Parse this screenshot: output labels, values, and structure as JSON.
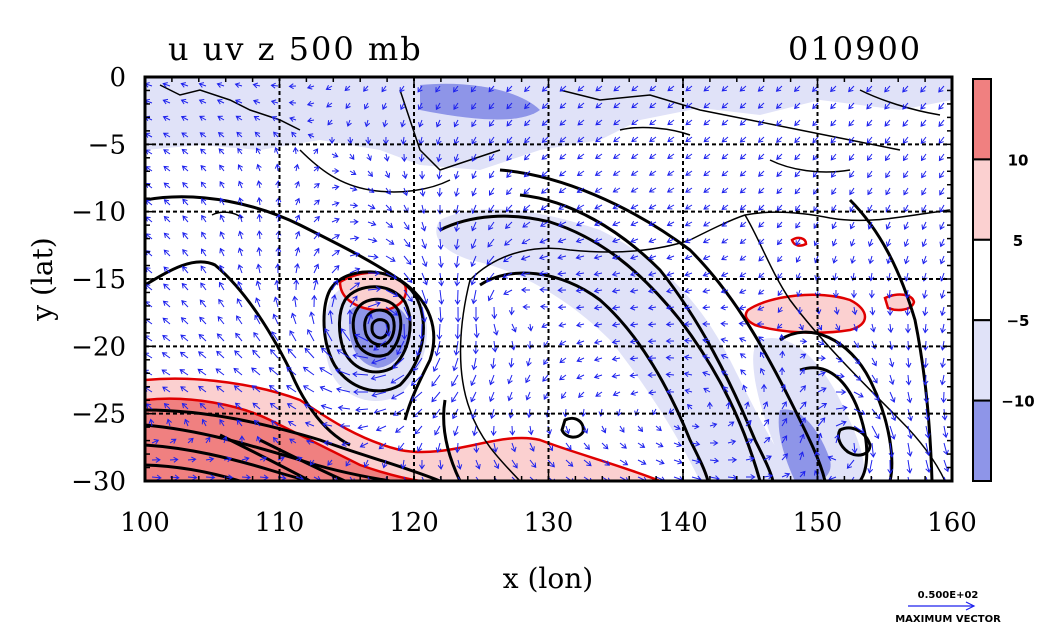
{
  "chart_data": {
    "type": "heatmap",
    "title": "u uv z 500 mb",
    "date_label": "010900",
    "xlabel": "x (lon)",
    "ylabel": "y (lat)",
    "xlim": [
      100,
      160
    ],
    "ylim": [
      -30,
      0
    ],
    "x_ticks": [
      "100",
      "110",
      "120",
      "130",
      "140",
      "150",
      "160"
    ],
    "y_ticks": [
      "0",
      "−5",
      "−10",
      "−15",
      "−20",
      "−25",
      "−30"
    ],
    "grid": true,
    "colorbar": {
      "labels": [
        "10",
        "5",
        "−5",
        "−10"
      ],
      "bands": [
        {
          "range": "> 10",
          "color": "#f08080"
        },
        {
          "range": "5 to 10",
          "color": "#fbd0d0"
        },
        {
          "range": "-5 to 5",
          "color": "#ffffff"
        },
        {
          "range": "-10 to -5",
          "color": "#e0e2f8"
        },
        {
          "range": "< -10",
          "color": "#8e95e8"
        }
      ]
    },
    "vector_legend": {
      "value": "0.500E+02",
      "label": "MAXIMUM VECTOR"
    },
    "colors": {
      "contour": "#000000",
      "u_contour": "#e00000",
      "vector": "#1e22ee",
      "coast": "#000000"
    }
  }
}
